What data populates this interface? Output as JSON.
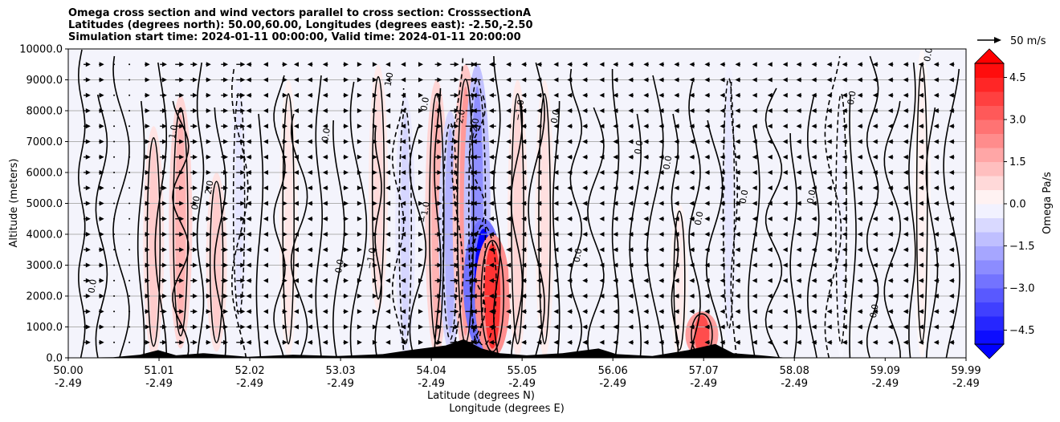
{
  "chart_data": {
    "type": "heatmap",
    "title_lines": [
      "Omega cross section and wind vectors parallel to cross section: CrosssectionA",
      "Latitudes (degrees north): 50.00,60.00, Longitudes (degrees east): -2.50,-2.50",
      "Simulation start time: 2024-01-11 00:00:00, Valid time: 2024-01-11 20:00:00"
    ],
    "ylabel": "Altitude (meters)",
    "xlabel_lines": [
      "Latitude (degrees N)",
      "Longitude (degrees E)"
    ],
    "ylim": [
      0,
      10000
    ],
    "y_ticks": [
      0,
      1000,
      2000,
      3000,
      4000,
      5000,
      6000,
      7000,
      8000,
      9000,
      10000
    ],
    "y_tick_labels": [
      "0.0",
      "1000.0",
      "2000.0",
      "3000.0",
      "4000.0",
      "5000.0",
      "6000.0",
      "7000.0",
      "8000.0",
      "9000.0",
      "10000.0"
    ],
    "xlim": [
      50.0,
      59.99
    ],
    "x_ticks": [
      50.0,
      51.01,
      52.02,
      53.03,
      54.04,
      55.05,
      56.06,
      57.07,
      58.08,
      59.09,
      59.99
    ],
    "x_tick_labels": [
      {
        "lat": "50.00",
        "lon": "-2.49"
      },
      {
        "lat": "51.01",
        "lon": "-2.49"
      },
      {
        "lat": "52.02",
        "lon": "-2.49"
      },
      {
        "lat": "53.03",
        "lon": "-2.49"
      },
      {
        "lat": "54.04",
        "lon": "-2.49"
      },
      {
        "lat": "55.05",
        "lon": "-2.49"
      },
      {
        "lat": "56.06",
        "lon": "-2.49"
      },
      {
        "lat": "57.07",
        "lon": "-2.49"
      },
      {
        "lat": "58.08",
        "lon": "-2.49"
      },
      {
        "lat": "59.09",
        "lon": "-2.49"
      },
      {
        "lat": "59.99",
        "lon": "-2.49"
      }
    ],
    "grid": "horizontal",
    "colorbar": {
      "label": "Omega Pa/s",
      "range": [
        -5.0,
        5.0
      ],
      "levels": [
        -5.0,
        -4.5,
        -4.0,
        -3.5,
        -3.0,
        -2.5,
        -2.0,
        -1.5,
        -1.0,
        -0.5,
        0.0,
        0.5,
        1.0,
        1.5,
        2.0,
        2.5,
        3.0,
        3.5,
        4.0,
        4.5,
        5.0
      ],
      "ticks": [
        -4.5,
        -3.0,
        -1.5,
        0.0,
        1.5,
        3.0,
        4.5
      ],
      "tick_labels": [
        "−4.5",
        "−3.0",
        "−1.5",
        "0.0",
        "1.5",
        "3.0",
        "4.5"
      ],
      "extend": "both",
      "colormap": "bwr",
      "color_min": "#0000ff",
      "color_mid": "#ffffff",
      "color_max": "#ff0000"
    },
    "quiver_key": {
      "label": "50 m/s",
      "speed": 50
    },
    "contour_line_levels": [
      "−2.0",
      "−1.0",
      "0.0",
      "1.0",
      "2.0"
    ],
    "omega_features": [
      {
        "lat": 50.95,
        "alt_low": 0,
        "alt_high": 7500,
        "omega": 1.0
      },
      {
        "lat": 51.25,
        "alt_low": 300,
        "alt_high": 8500,
        "omega": 1.5
      },
      {
        "lat": 51.65,
        "alt_low": 200,
        "alt_high": 6000,
        "omega": 1.0
      },
      {
        "lat": 51.9,
        "alt_low": 1000,
        "alt_high": 9000,
        "omega": -0.5
      },
      {
        "lat": 52.45,
        "alt_low": 0,
        "alt_high": 9000,
        "omega": 0.5
      },
      {
        "lat": 53.45,
        "alt_low": 1500,
        "alt_high": 9500,
        "omega": 0.7
      },
      {
        "lat": 53.75,
        "alt_low": 0,
        "alt_high": 8500,
        "omega": -0.8
      },
      {
        "lat": 54.1,
        "alt_low": 0,
        "alt_high": 9000,
        "omega": 1.5
      },
      {
        "lat": 54.25,
        "alt_low": 200,
        "alt_high": 8000,
        "omega": -1.5
      },
      {
        "lat": 54.42,
        "alt_low": 0,
        "alt_high": 9500,
        "omega": 2.0
      },
      {
        "lat": 54.55,
        "alt_low": 0,
        "alt_high": 9500,
        "omega": -2.2
      },
      {
        "lat": 54.62,
        "alt_low": 200,
        "alt_high": 4500,
        "omega": -5.0
      },
      {
        "lat": 54.72,
        "alt_low": 0,
        "alt_high": 4000,
        "omega": 4.0
      },
      {
        "lat": 55.0,
        "alt_low": 0,
        "alt_high": 9000,
        "omega": 0.8
      },
      {
        "lat": 55.3,
        "alt_low": 0,
        "alt_high": 9000,
        "omega": 0.6
      },
      {
        "lat": 56.8,
        "alt_low": 0,
        "alt_high": 5000,
        "omega": 0.4
      },
      {
        "lat": 57.05,
        "alt_low": 0,
        "alt_high": 1500,
        "omega": 3.5
      },
      {
        "lat": 57.35,
        "alt_low": 500,
        "alt_high": 9500,
        "omega": -0.5
      },
      {
        "lat": 58.6,
        "alt_low": 0,
        "alt_high": 9000,
        "omega": -0.3
      },
      {
        "lat": 59.5,
        "alt_low": 0,
        "alt_high": 10000,
        "omega": 0.3
      }
    ],
    "contour_labels": [
      {
        "text": "0.0",
        "lat": 51.45,
        "alt": 5000
      },
      {
        "text": "1.0",
        "lat": 51.2,
        "alt": 7300
      },
      {
        "text": "2.0",
        "lat": 51.6,
        "alt": 5500
      },
      {
        "text": "0.0",
        "lat": 52.9,
        "alt": 7200
      },
      {
        "text": "1.0",
        "lat": 53.6,
        "alt": 9000
      },
      {
        "text": "0.0",
        "lat": 54.0,
        "alt": 8200
      },
      {
        "text": "−1.0",
        "lat": 54.0,
        "alt": 4700
      },
      {
        "text": "2.0",
        "lat": 54.4,
        "alt": 7800
      },
      {
        "text": "−2.0",
        "lat": 54.55,
        "alt": 7400
      },
      {
        "text": "−1.0",
        "lat": 55.05,
        "alt": 8000
      },
      {
        "text": "0.0",
        "lat": 55.45,
        "alt": 7800
      },
      {
        "text": "0.0",
        "lat": 56.38,
        "alt": 6800
      },
      {
        "text": "0.0",
        "lat": 56.7,
        "alt": 6300
      },
      {
        "text": "0.0",
        "lat": 57.05,
        "alt": 4500
      },
      {
        "text": "0.0",
        "lat": 57.55,
        "alt": 5200
      },
      {
        "text": "0.0",
        "lat": 58.3,
        "alt": 5200
      },
      {
        "text": "0.0",
        "lat": 58.75,
        "alt": 8400
      },
      {
        "text": "0.0",
        "lat": 59.6,
        "alt": 9800
      },
      {
        "text": "0.0",
        "lat": 50.3,
        "alt": 2300
      },
      {
        "text": "0.0",
        "lat": 53.05,
        "alt": 2950
      },
      {
        "text": "0.0",
        "lat": 55.7,
        "alt": 3300
      },
      {
        "text": "−1.0",
        "lat": 53.4,
        "alt": 3200
      },
      {
        "text": "0.0",
        "lat": 59.0,
        "alt": 1500
      }
    ],
    "terrain": [
      {
        "lat": 50.0,
        "alt": 0
      },
      {
        "lat": 50.5,
        "alt": 20
      },
      {
        "lat": 50.8,
        "alt": 100
      },
      {
        "lat": 51.0,
        "alt": 250
      },
      {
        "lat": 51.2,
        "alt": 80
      },
      {
        "lat": 51.5,
        "alt": 150
      },
      {
        "lat": 52.0,
        "alt": 30
      },
      {
        "lat": 52.5,
        "alt": 100
      },
      {
        "lat": 53.0,
        "alt": 60
      },
      {
        "lat": 53.5,
        "alt": 120
      },
      {
        "lat": 53.8,
        "alt": 250
      },
      {
        "lat": 54.2,
        "alt": 400
      },
      {
        "lat": 54.4,
        "alt": 600
      },
      {
        "lat": 54.6,
        "alt": 300
      },
      {
        "lat": 54.8,
        "alt": 150
      },
      {
        "lat": 55.1,
        "alt": 80
      },
      {
        "lat": 55.5,
        "alt": 150
      },
      {
        "lat": 55.9,
        "alt": 300
      },
      {
        "lat": 56.1,
        "alt": 120
      },
      {
        "lat": 56.5,
        "alt": 60
      },
      {
        "lat": 56.9,
        "alt": 250
      },
      {
        "lat": 57.2,
        "alt": 450
      },
      {
        "lat": 57.4,
        "alt": 150
      },
      {
        "lat": 57.7,
        "alt": 80
      },
      {
        "lat": 58.0,
        "alt": 0
      },
      {
        "lat": 59.99,
        "alt": 0
      }
    ],
    "wind_columns": [
      {
        "lat": 50.0,
        "u": -4
      },
      {
        "lat": 50.17,
        "u": 4
      },
      {
        "lat": 50.34,
        "u": 3
      },
      {
        "lat": 50.51,
        "u": 0
      },
      {
        "lat": 50.68,
        "u": 0
      },
      {
        "lat": 50.85,
        "u": 3
      },
      {
        "lat": 51.02,
        "u": 4
      },
      {
        "lat": 51.19,
        "u": 5
      },
      {
        "lat": 51.36,
        "u": 4
      },
      {
        "lat": 51.53,
        "u": 3
      },
      {
        "lat": 51.7,
        "u": 4
      },
      {
        "lat": 51.87,
        "u": 5
      },
      {
        "lat": 52.04,
        "u": -3
      },
      {
        "lat": 52.21,
        "u": -2
      },
      {
        "lat": 52.38,
        "u": 3
      },
      {
        "lat": 52.55,
        "u": -2
      },
      {
        "lat": 52.72,
        "u": -3
      },
      {
        "lat": 52.89,
        "u": -3
      },
      {
        "lat": 53.06,
        "u": 3
      },
      {
        "lat": 53.23,
        "u": 2
      },
      {
        "lat": 53.4,
        "u": 2
      },
      {
        "lat": 53.57,
        "u": -2
      },
      {
        "lat": 53.74,
        "u": -2
      },
      {
        "lat": 53.91,
        "u": 2
      },
      {
        "lat": 54.08,
        "u": 4
      },
      {
        "lat": 54.25,
        "u": 5
      },
      {
        "lat": 54.42,
        "u": 6
      },
      {
        "lat": 54.59,
        "u": -5
      },
      {
        "lat": 54.76,
        "u": -4
      },
      {
        "lat": 54.93,
        "u": -3
      },
      {
        "lat": 55.1,
        "u": -3
      },
      {
        "lat": 55.27,
        "u": -3
      },
      {
        "lat": 55.44,
        "u": -2
      },
      {
        "lat": 55.61,
        "u": -3
      },
      {
        "lat": 55.78,
        "u": -3
      },
      {
        "lat": 55.95,
        "u": -2
      },
      {
        "lat": 56.12,
        "u": -3
      },
      {
        "lat": 56.29,
        "u": -3
      },
      {
        "lat": 56.46,
        "u": -3
      },
      {
        "lat": 56.63,
        "u": -3
      },
      {
        "lat": 56.8,
        "u": -3
      },
      {
        "lat": 56.97,
        "u": -3
      },
      {
        "lat": 57.14,
        "u": -3
      },
      {
        "lat": 57.31,
        "u": -3
      },
      {
        "lat": 57.48,
        "u": -3
      },
      {
        "lat": 57.65,
        "u": -2
      },
      {
        "lat": 57.82,
        "u": -2
      },
      {
        "lat": 57.99,
        "u": -2
      },
      {
        "lat": 58.16,
        "u": -3
      },
      {
        "lat": 58.33,
        "u": -3
      },
      {
        "lat": 58.5,
        "u": -3
      },
      {
        "lat": 58.67,
        "u": -3
      },
      {
        "lat": 58.84,
        "u": -3
      },
      {
        "lat": 59.01,
        "u": -3
      },
      {
        "lat": 59.18,
        "u": -3
      },
      {
        "lat": 59.35,
        "u": -3
      },
      {
        "lat": 59.52,
        "u": -3
      },
      {
        "lat": 59.69,
        "u": -3
      },
      {
        "lat": 59.86,
        "u": -3
      }
    ],
    "wind_levels_m": [
      500,
      1000,
      1500,
      2000,
      2500,
      3000,
      3500,
      4000,
      4500,
      5000,
      5500,
      6000,
      6500,
      7000,
      7500,
      8000,
      8500,
      9000,
      9500
    ]
  }
}
